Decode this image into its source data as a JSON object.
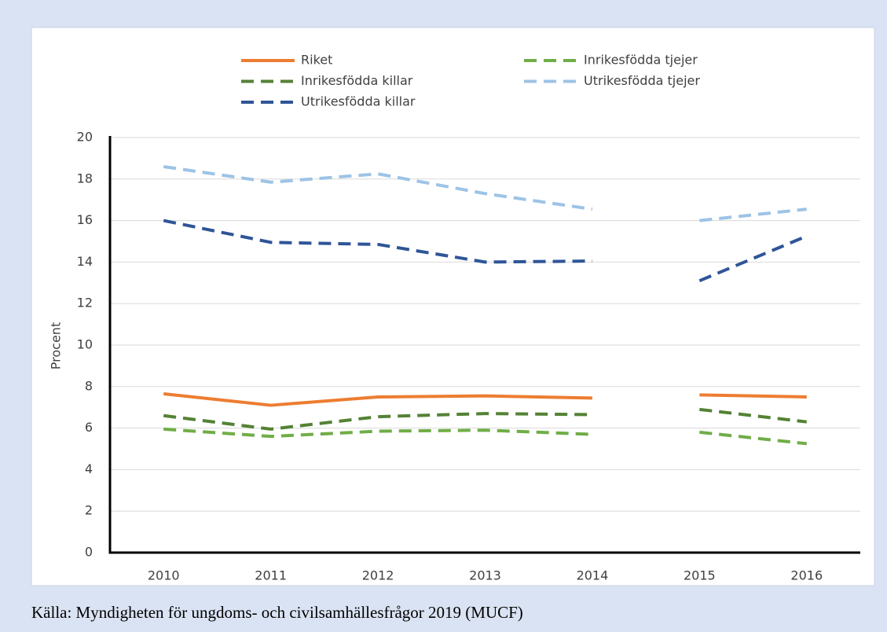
{
  "chart_data": {
    "type": "line",
    "ylabel": "Procent",
    "source": "Källa: Myndigheten för ungdoms- och civilsamhällesfrågor 2019 (MUCF)",
    "categories": [
      "2010",
      "2011",
      "2012",
      "2013",
      "2014",
      "2015",
      "2016"
    ],
    "gap_after_index": 4,
    "ylim": [
      0,
      20
    ],
    "yticks": [
      0,
      2,
      4,
      6,
      8,
      10,
      12,
      14,
      16,
      18,
      20
    ],
    "grid": true,
    "series": [
      {
        "name": "Riket",
        "color": "#ed7d31",
        "style": "solid",
        "values": [
          7.65,
          7.1,
          7.5,
          7.55,
          7.45,
          7.6,
          7.5
        ]
      },
      {
        "name": "Inrikesfödda tjejer",
        "color": "#70ad47",
        "style": "dashed",
        "values": [
          5.95,
          5.6,
          5.85,
          5.9,
          5.7,
          5.8,
          5.25
        ]
      },
      {
        "name": "Inrikesfödda killar",
        "color": "#548235",
        "style": "dashed",
        "values": [
          6.6,
          5.95,
          6.55,
          6.7,
          6.65,
          6.9,
          6.3
        ]
      },
      {
        "name": "Utrikesfödda tjejer",
        "color": "#9dc3e6",
        "style": "dashed",
        "values": [
          18.6,
          17.85,
          18.25,
          17.3,
          16.55,
          16.0,
          16.55
        ]
      },
      {
        "name": "Utrikesfödda killar",
        "color": "#2f5597",
        "style": "dashed",
        "values": [
          16.0,
          14.95,
          14.85,
          14.0,
          14.05,
          13.1,
          15.25
        ]
      }
    ]
  }
}
